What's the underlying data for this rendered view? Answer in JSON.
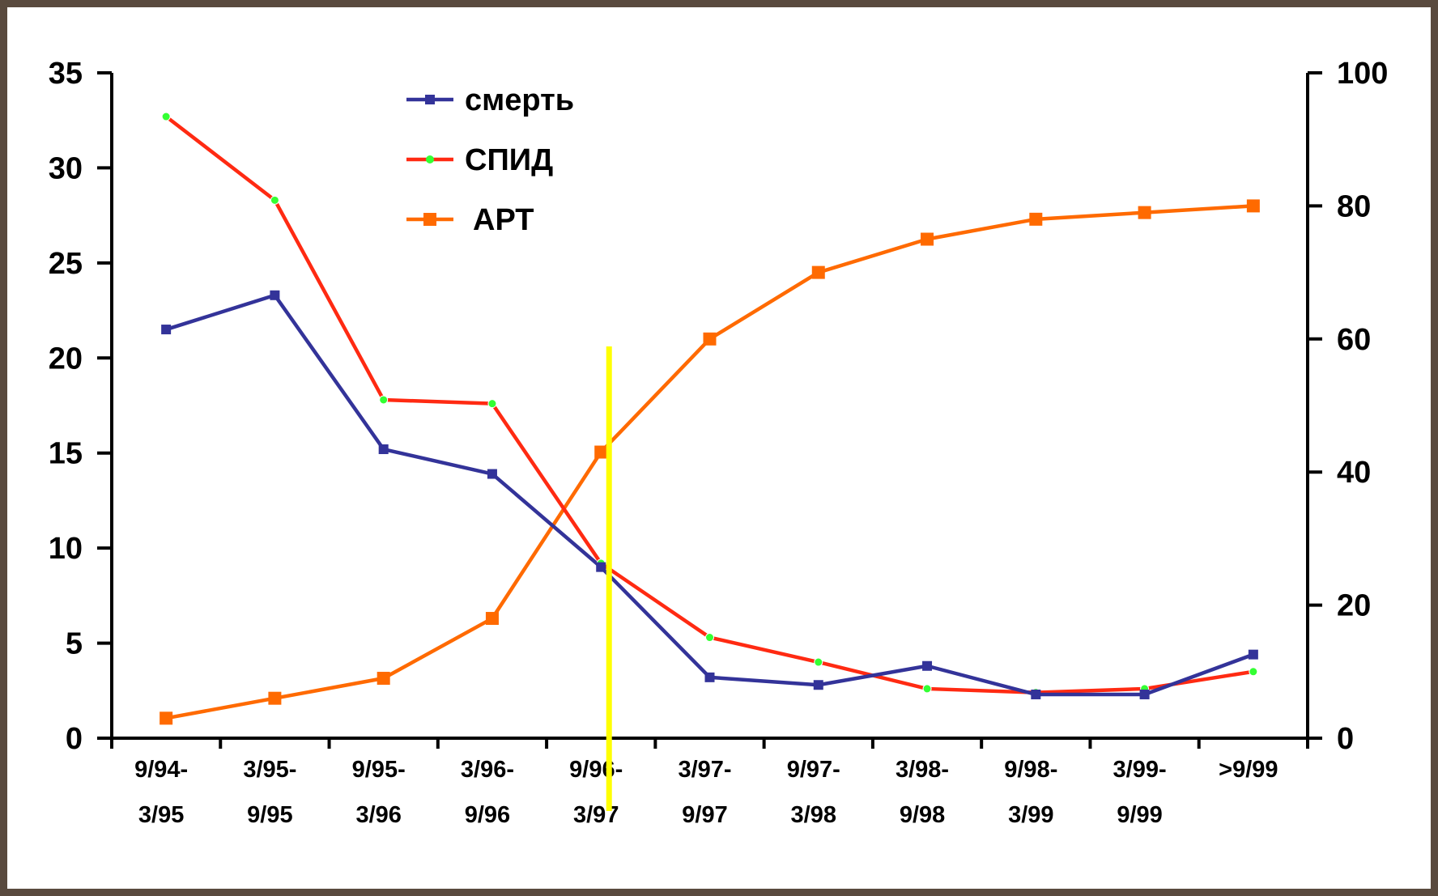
{
  "chart_data": {
    "type": "line",
    "categories": [
      [
        "9/94-",
        "3/95"
      ],
      [
        "3/95-",
        "9/95"
      ],
      [
        "9/95-",
        "3/96"
      ],
      [
        "3/96-",
        "9/96"
      ],
      [
        "9/96-",
        "3/97"
      ],
      [
        "3/97-",
        "9/97"
      ],
      [
        "9/97-",
        "3/98"
      ],
      [
        "3/98-",
        "9/98"
      ],
      [
        "9/98-",
        "3/99"
      ],
      [
        "3/99-",
        "9/99"
      ],
      [
        ">9/99",
        ""
      ]
    ],
    "y_left": {
      "ylim": [
        0,
        35
      ],
      "ticks": [
        0,
        5,
        10,
        15,
        20,
        25,
        30,
        35
      ]
    },
    "y_right": {
      "ylim": [
        0,
        100
      ],
      "ticks": [
        0,
        20,
        40,
        60,
        80,
        100
      ]
    },
    "series": [
      {
        "name": "смерть",
        "axis": "left",
        "color": "#333399",
        "marker": "square-small",
        "values": [
          21.5,
          23.3,
          15.2,
          13.9,
          9.0,
          3.2,
          2.8,
          3.8,
          2.3,
          2.3,
          4.4
        ]
      },
      {
        "name": "СПИД",
        "axis": "left",
        "color": "#ff2a12",
        "marker": "green-dot",
        "values": [
          32.7,
          28.3,
          17.8,
          17.6,
          9.2,
          5.3,
          4.0,
          2.6,
          2.4,
          2.6,
          3.5
        ]
      },
      {
        "name": "АРТ",
        "axis": "right",
        "color": "#ff6a00",
        "marker": "square-large",
        "values": [
          3,
          6,
          9,
          18,
          43,
          60,
          70,
          75,
          78,
          79,
          80
        ]
      }
    ],
    "marker_line": {
      "category_index": 4,
      "color": "#ffff00"
    },
    "legend": {
      "placement": "top-left",
      "entries": [
        "смерть",
        "СПИД",
        "АРТ"
      ]
    },
    "grid": false
  }
}
